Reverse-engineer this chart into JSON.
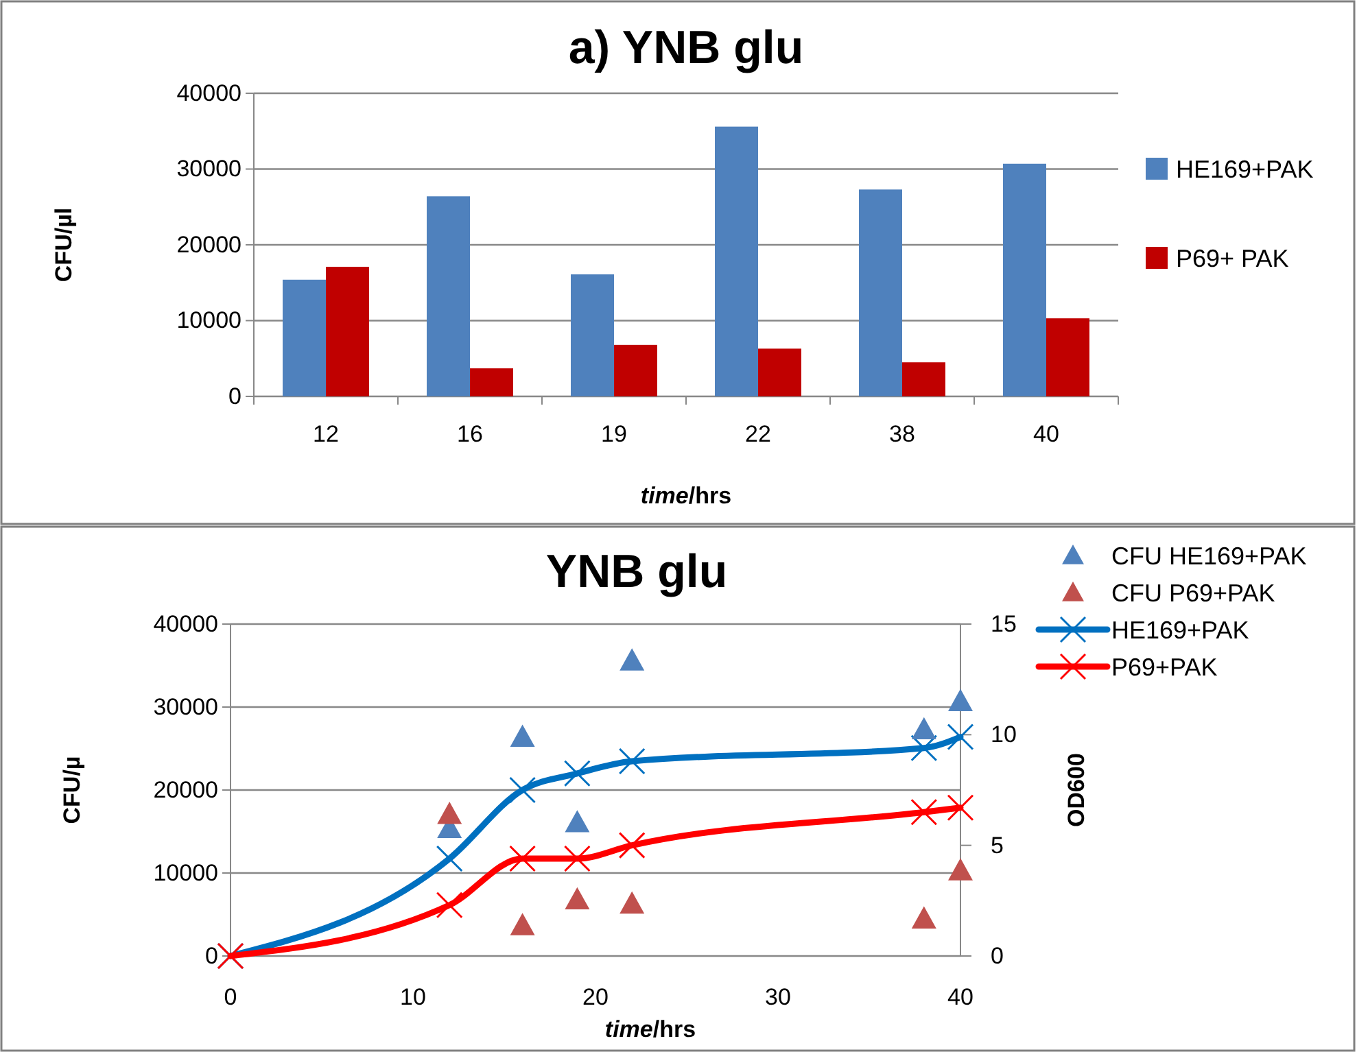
{
  "chart_data": [
    {
      "type": "bar",
      "title": "a) YNB glu",
      "xlabel": "time/hrs",
      "ylabel": "CFU/µl",
      "categories": [
        "12",
        "16",
        "19",
        "22",
        "38",
        "40"
      ],
      "series": [
        {
          "name": "HE169+PAK",
          "color": "#4f81bd",
          "values": [
            15400,
            26400,
            16100,
            35600,
            27300,
            30700
          ]
        },
        {
          "name": "P69+ PAK",
          "color": "#c00000",
          "values": [
            17100,
            3700,
            6800,
            6300,
            4500,
            10300
          ]
        }
      ],
      "ylim": [
        0,
        40000
      ],
      "yticks": [
        0,
        10000,
        20000,
        30000,
        40000
      ],
      "grid": "y",
      "legend": "right"
    },
    {
      "type": "scatter",
      "title": "YNB glu",
      "xlabel": "time/hrs",
      "ylabel": "CFU/µ",
      "y2label": "OD600",
      "series": [
        {
          "name": "CFU HE169+PAK",
          "type": "scatter",
          "marker": "triangle",
          "color": "#4f81bd",
          "x": [
            12,
            16,
            19,
            22,
            38,
            40
          ],
          "values": [
            15400,
            26400,
            16100,
            35600,
            27300,
            30700
          ]
        },
        {
          "name": "CFU P69+PAK",
          "type": "scatter",
          "marker": "triangle",
          "color": "#c0504d",
          "x": [
            12,
            16,
            19,
            22,
            38,
            40
          ],
          "values": [
            17100,
            3700,
            6800,
            6300,
            4500,
            10300
          ]
        },
        {
          "name": "HE169+PAK",
          "type": "line",
          "axis": "y2",
          "marker": "cross",
          "color": "#0070c0",
          "x": [
            0,
            12,
            16,
            19,
            22,
            38,
            40
          ],
          "values": [
            0,
            4.4,
            7.5,
            8.25,
            8.8,
            9.4,
            9.9
          ]
        },
        {
          "name": "P69+PAK",
          "type": "line",
          "axis": "y2",
          "marker": "cross",
          "color": "#ff0000",
          "x": [
            0,
            12,
            16,
            19,
            22,
            38,
            40
          ],
          "values": [
            0,
            2.3,
            4.4,
            4.4,
            5.0,
            6.5,
            6.7
          ]
        }
      ],
      "xlim": [
        0,
        40
      ],
      "xticks": [
        0,
        10,
        20,
        30,
        40
      ],
      "ylim": [
        0,
        40000
      ],
      "yticks": [
        0,
        10000,
        20000,
        30000,
        40000
      ],
      "y2lim": [
        0,
        15
      ],
      "y2ticks": [
        0,
        5,
        10,
        15
      ],
      "grid": "y",
      "legend": "top right"
    }
  ]
}
